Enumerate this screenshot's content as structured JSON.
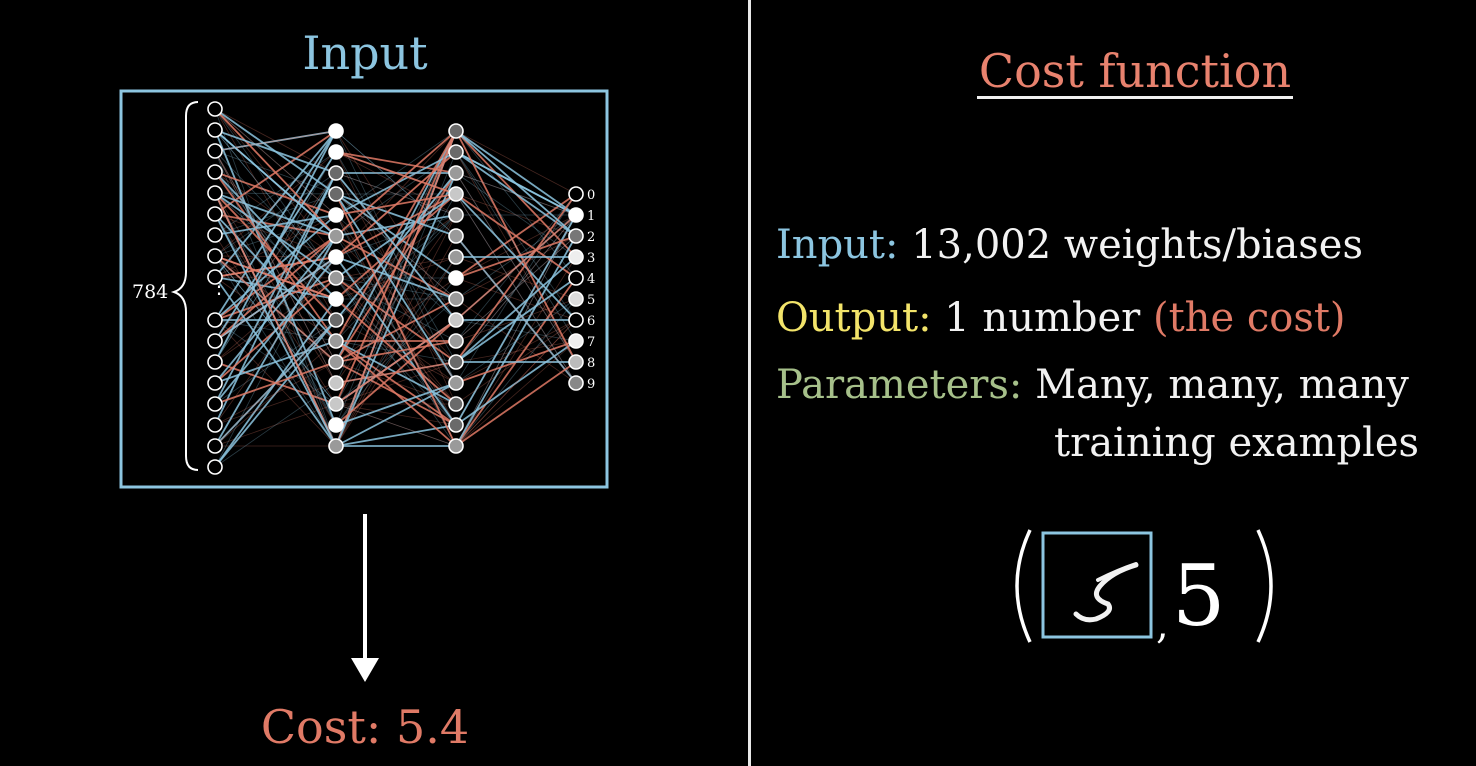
{
  "left": {
    "title": "Input",
    "layer_size_label": "784",
    "output_digits": [
      "0",
      "1",
      "2",
      "3",
      "4",
      "5",
      "6",
      "7",
      "8",
      "9"
    ],
    "cost_label": "Cost: 5.4"
  },
  "right": {
    "title": "Cost function",
    "input_key": "Input:",
    "input_value": "13,002 weights/biases",
    "output_key": "Output:",
    "output_value": "1 number",
    "output_paren": "(the cost)",
    "params_key": "Parameters:",
    "params_value_line1": "Many, many, many",
    "params_value_line2": "training examples",
    "example_label": "5"
  },
  "colors": {
    "blue": "#8cc5e0",
    "salmon": "#e07a66",
    "yellow": "#f3e46a",
    "green": "#a6c08a"
  }
}
